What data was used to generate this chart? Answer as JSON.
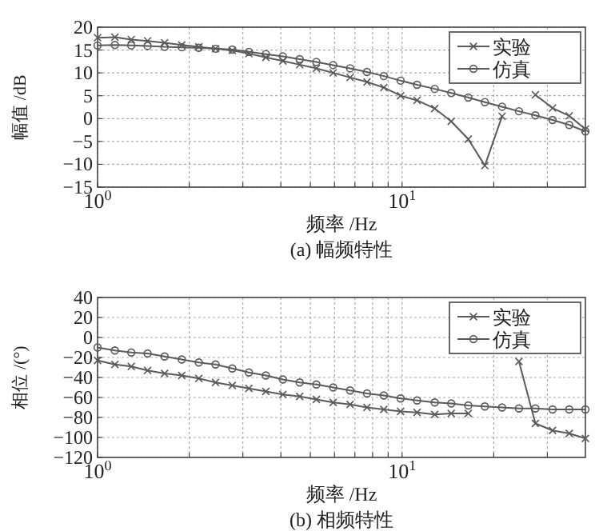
{
  "chart_data": [
    {
      "type": "line",
      "title": "(a) 幅频特性",
      "xlabel": "频率 /Hz",
      "ylabel": "幅值 /dB",
      "log": "x",
      "grid": true,
      "legend": "top right",
      "line_style": "solid",
      "x": [
        1,
        1.14,
        1.29,
        1.46,
        1.66,
        1.89,
        2.15,
        2.44,
        2.77,
        3.14,
        3.57,
        4.06,
        4.61,
        5.23,
        5.94,
        6.75,
        7.67,
        8.71,
        9.89,
        11.2,
        12.8,
        14.5,
        16.5,
        18.7,
        21.3,
        24.2,
        27.4,
        31.2,
        35.4,
        40
      ],
      "xlim": [
        1,
        40
      ],
      "xticks": [
        {
          "value": 1,
          "label": "10$^{0}$"
        },
        {
          "value": 2,
          "label": null
        },
        {
          "value": 3,
          "label": null
        },
        {
          "value": 4,
          "label": null
        },
        {
          "value": 5,
          "label": null
        },
        {
          "value": 6,
          "label": null
        },
        {
          "value": 7,
          "label": null
        },
        {
          "value": 8,
          "label": null
        },
        {
          "value": 9,
          "label": null
        },
        {
          "value": 10,
          "label": "10$^{1}$"
        },
        {
          "value": 20,
          "label": null
        },
        {
          "value": 30,
          "label": null
        }
      ],
      "ylim": [
        -15,
        20
      ],
      "yticks": [
        -15,
        -10,
        -5,
        0,
        5,
        10,
        15,
        20
      ],
      "series": [
        {
          "name": "实验",
          "color": "#5a5a5a",
          "marker": "cross",
          "values": [
            17.7,
            17.8,
            17.3,
            17.0,
            16.6,
            16.1,
            15.7,
            15.3,
            14.9,
            14.2,
            13.4,
            12.6,
            11.8,
            11.0,
            10.0,
            9.0,
            8.0,
            6.8,
            5.0,
            4.0,
            2.2,
            -0.6,
            -4.5,
            -10.3,
            0.5,
            null,
            5.2,
            2.3,
            0.6,
            -2.3
          ]
        },
        {
          "name": "仿真",
          "color": "#5a5a5a",
          "marker": "circle",
          "values": [
            16.0,
            16.1,
            16.0,
            15.9,
            15.7,
            15.6,
            15.5,
            15.3,
            15.1,
            14.6,
            14.1,
            13.6,
            13.0,
            12.4,
            11.7,
            11.0,
            10.2,
            9.3,
            8.3,
            7.4,
            6.5,
            5.6,
            4.6,
            3.6,
            2.6,
            1.6,
            0.7,
            -0.3,
            -1.4,
            -2.8
          ]
        }
      ]
    },
    {
      "type": "line",
      "title": "(b) 相频特性",
      "xlabel": "频率 /Hz",
      "ylabel": "相位 /(°)",
      "log": "x",
      "grid": true,
      "legend": "top right",
      "line_style": "solid",
      "x": [
        1,
        1.14,
        1.29,
        1.46,
        1.66,
        1.89,
        2.15,
        2.44,
        2.77,
        3.14,
        3.57,
        4.06,
        4.61,
        5.23,
        5.94,
        6.75,
        7.67,
        8.71,
        9.89,
        11.2,
        12.8,
        14.5,
        16.5,
        18.7,
        21.3,
        24.2,
        27.4,
        31.2,
        35.4,
        40
      ],
      "xlim": [
        1,
        40
      ],
      "xticks": [
        {
          "value": 1,
          "label": "10$^{0}$"
        },
        {
          "value": 2,
          "label": null
        },
        {
          "value": 3,
          "label": null
        },
        {
          "value": 4,
          "label": null
        },
        {
          "value": 5,
          "label": null
        },
        {
          "value": 6,
          "label": null
        },
        {
          "value": 7,
          "label": null
        },
        {
          "value": 8,
          "label": null
        },
        {
          "value": 9,
          "label": null
        },
        {
          "value": 10,
          "label": "10$^{1}$"
        },
        {
          "value": 20,
          "label": null
        },
        {
          "value": 30,
          "label": null
        }
      ],
      "ylim": [
        -120,
        40
      ],
      "yticks": [
        -120,
        -100,
        -80,
        -60,
        -40,
        -20,
        0,
        20,
        40
      ],
      "series": [
        {
          "name": "实验",
          "color": "#5a5a5a",
          "marker": "cross",
          "values": [
            -23,
            -27,
            -29,
            -33,
            -36,
            -38,
            -41,
            -45,
            -48,
            -51,
            -54,
            -57,
            -59,
            -62,
            -65,
            -67,
            -70,
            -72,
            -74,
            -75,
            -77,
            -76,
            -76,
            null,
            null,
            -24,
            -86,
            -93,
            -96,
            -101
          ]
        },
        {
          "name": "仿真",
          "color": "#5a5a5a",
          "marker": "circle",
          "values": [
            -10,
            -13,
            -15,
            -16,
            -19,
            -22,
            -25,
            -27,
            -31,
            -35,
            -38,
            -42,
            -45,
            -47,
            -50,
            -53,
            -56,
            -58,
            -61,
            -63,
            -65,
            -66,
            -68,
            -69,
            -70,
            -71,
            -71,
            -72,
            -72,
            -72
          ]
        }
      ]
    }
  ]
}
